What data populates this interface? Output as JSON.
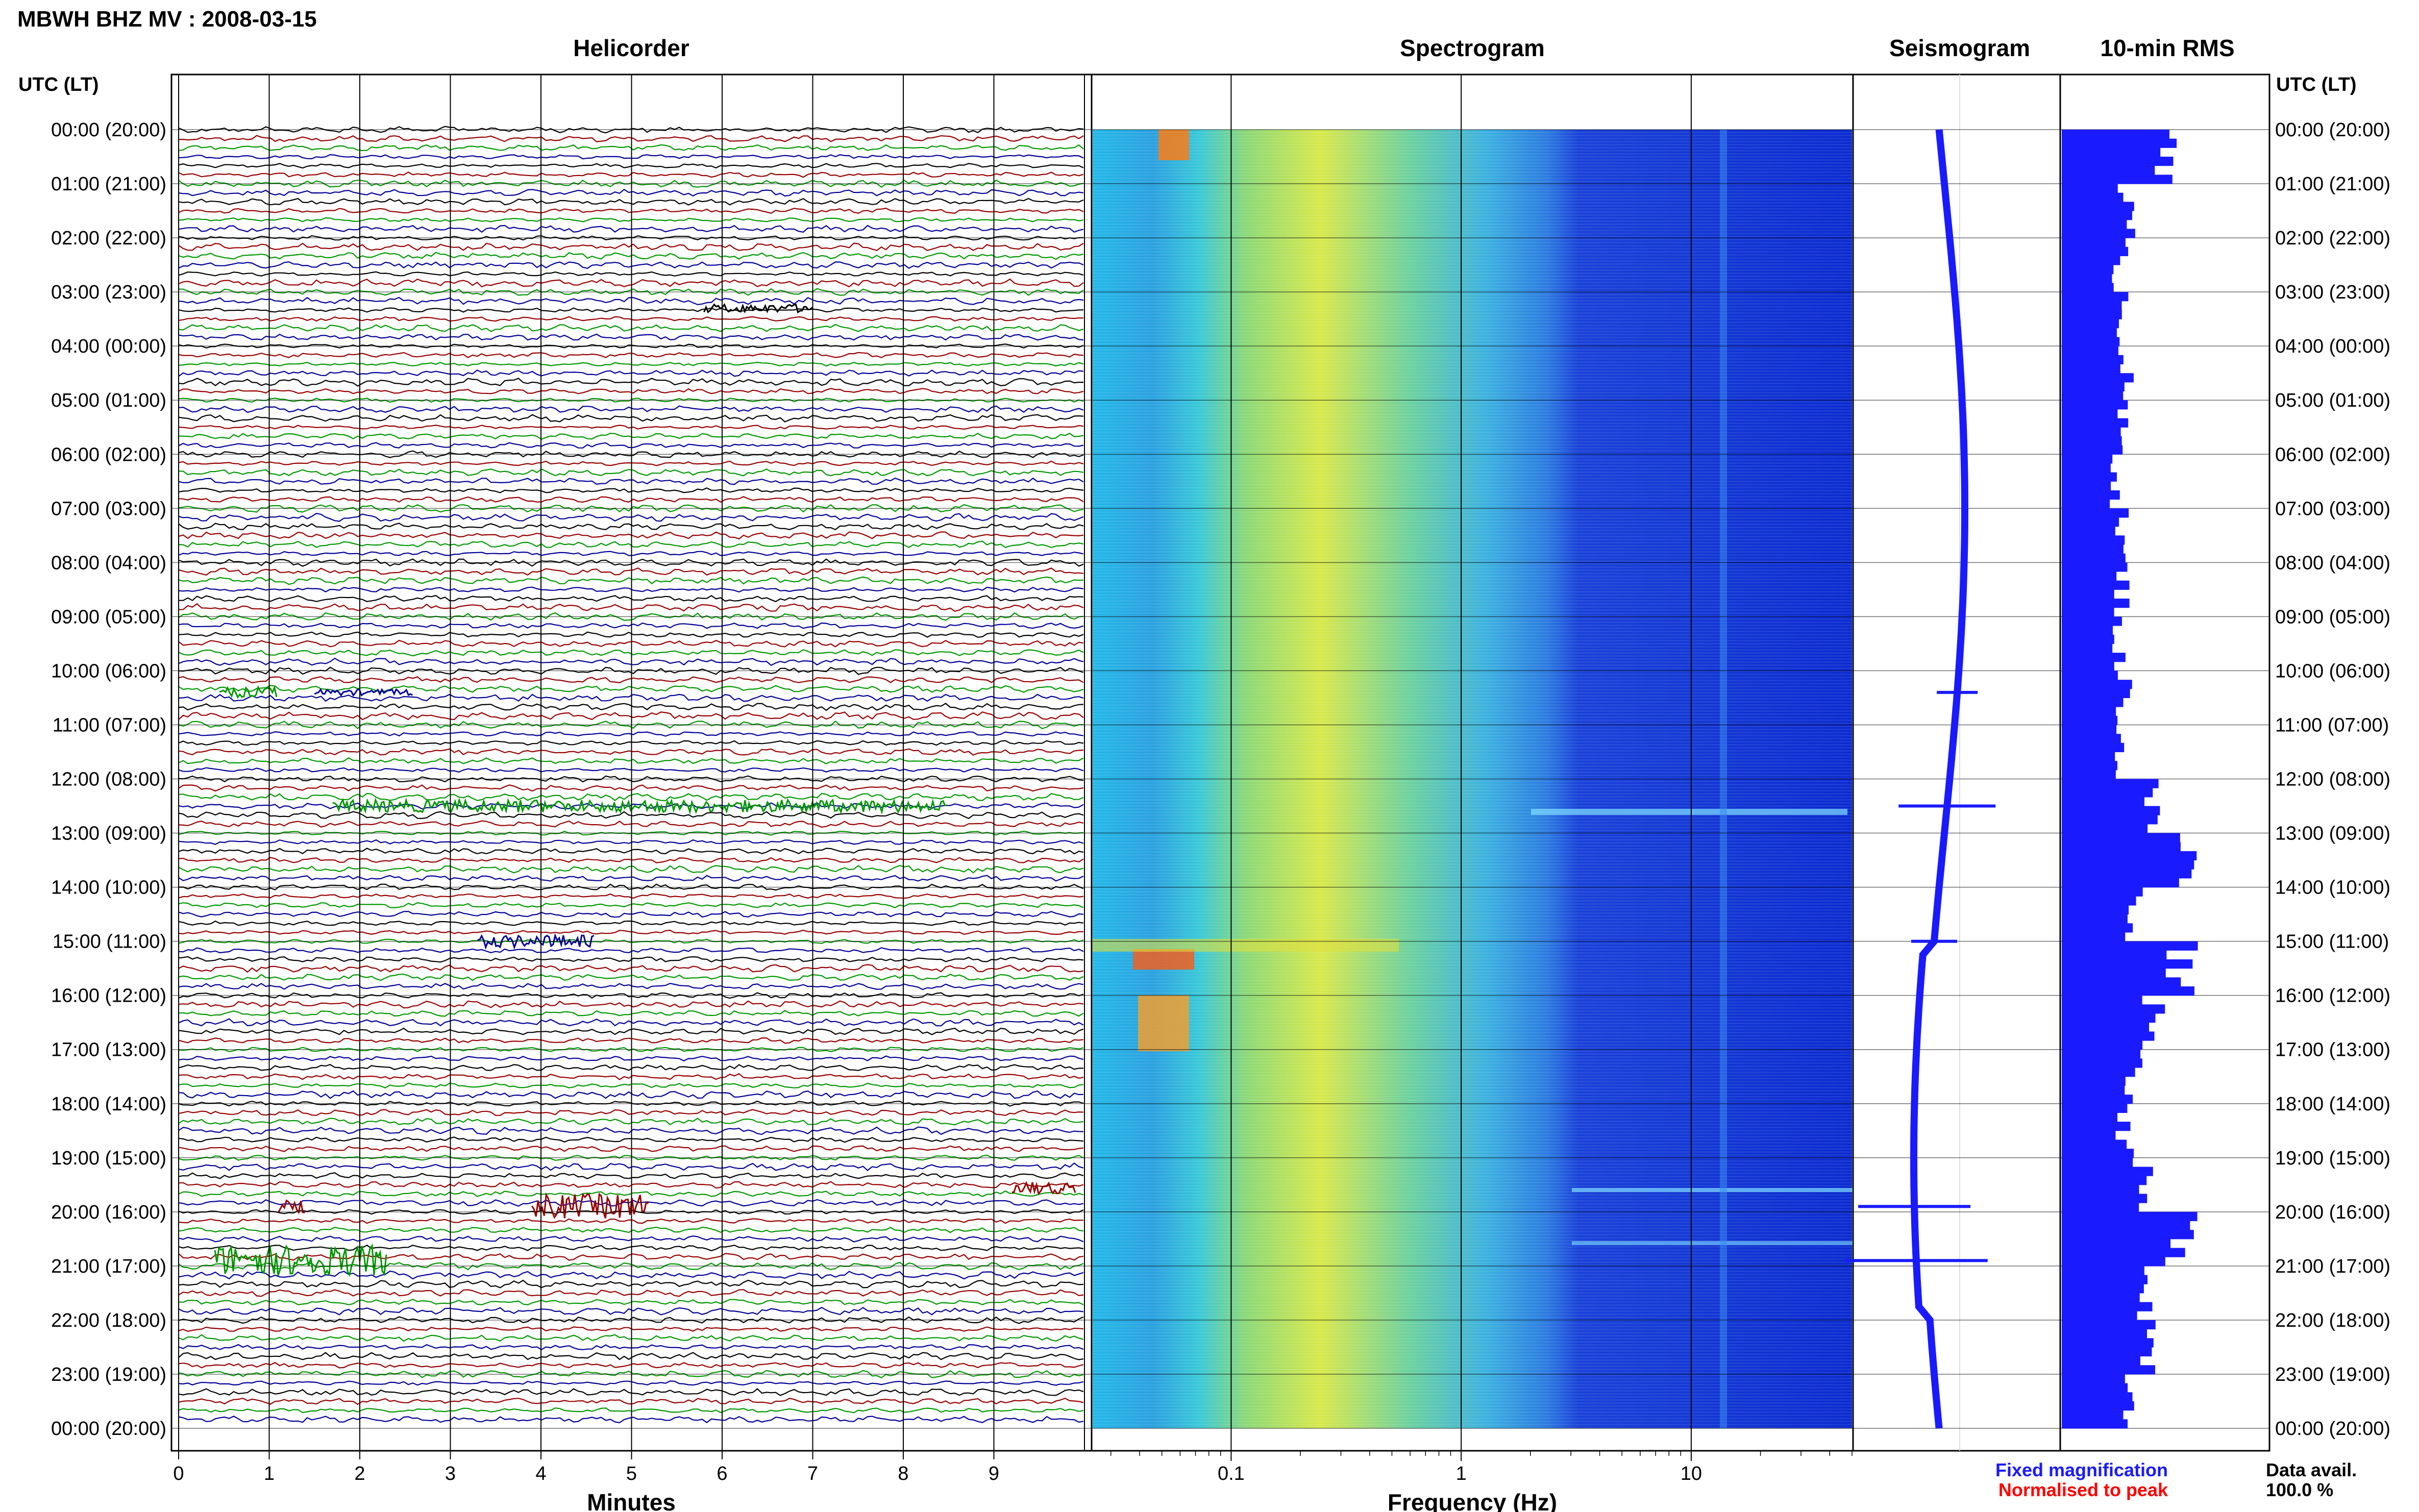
{
  "header": {
    "title": "MBWH BHZ MV : 2008-03-15"
  },
  "panels": {
    "helicorder": "Helicorder",
    "spectrogram": "Spectrogram",
    "seismogram": "Seismogram",
    "rms": "10-min RMS"
  },
  "axes": {
    "time_label_left": "UTC (LT)",
    "time_label_right": "UTC (LT)",
    "helicorder_xlabel": "Minutes",
    "spectrogram_xlabel": "Frequency (Hz)"
  },
  "legend": {
    "fixed": "Fixed magnification",
    "normalised": "Normalised to peak",
    "fixed_color": "#1a1aff",
    "normalised_color": "#ff0000"
  },
  "data_avail": {
    "label": "Data avail.",
    "value": "100.0 %"
  },
  "chart_data": {
    "type": "heatmap",
    "title": "MBWH BHZ MV : 2008-03-15",
    "time_ticks": [
      "00:00 (20:00)",
      "01:00 (21:00)",
      "02:00 (22:00)",
      "03:00 (23:00)",
      "04:00 (00:00)",
      "05:00 (01:00)",
      "06:00 (02:00)",
      "07:00 (03:00)",
      "08:00 (04:00)",
      "09:00 (05:00)",
      "10:00 (06:00)",
      "11:00 (07:00)",
      "12:00 (08:00)",
      "13:00 (09:00)",
      "14:00 (10:00)",
      "15:00 (11:00)",
      "16:00 (12:00)",
      "17:00 (13:00)",
      "18:00 (14:00)",
      "19:00 (15:00)",
      "20:00 (16:00)",
      "21:00 (17:00)",
      "22:00 (18:00)",
      "23:00 (19:00)",
      "00:00 (20:00)"
    ],
    "helicorder": {
      "xlabel": "Minutes",
      "xlim": [
        0,
        10
      ],
      "x_ticks": [
        "0",
        "1",
        "2",
        "3",
        "4",
        "5",
        "6",
        "7",
        "8",
        "9"
      ],
      "trace_colors": [
        "#000000",
        "#990000",
        "#009900",
        "#000099"
      ],
      "traces_per_hour": 6
    },
    "spectrogram": {
      "xlabel": "Frequency (Hz)",
      "scale": "log",
      "xlim": [
        0.025,
        50
      ],
      "x_ticks": [
        "0.1",
        "1",
        "10"
      ]
    },
    "seismogram": {
      "color": "#1a1aff"
    },
    "rms": {
      "interval_minutes": 10,
      "color": "#1a1aff",
      "hourly_relative": [
        0.52,
        0.31,
        0.28,
        0.3,
        0.3,
        0.28,
        0.27,
        0.28,
        0.29,
        0.27,
        0.3,
        0.28,
        0.42,
        0.6,
        0.35,
        0.58,
        0.45,
        0.35,
        0.3,
        0.38,
        0.58,
        0.42,
        0.42,
        0.34
      ]
    }
  }
}
